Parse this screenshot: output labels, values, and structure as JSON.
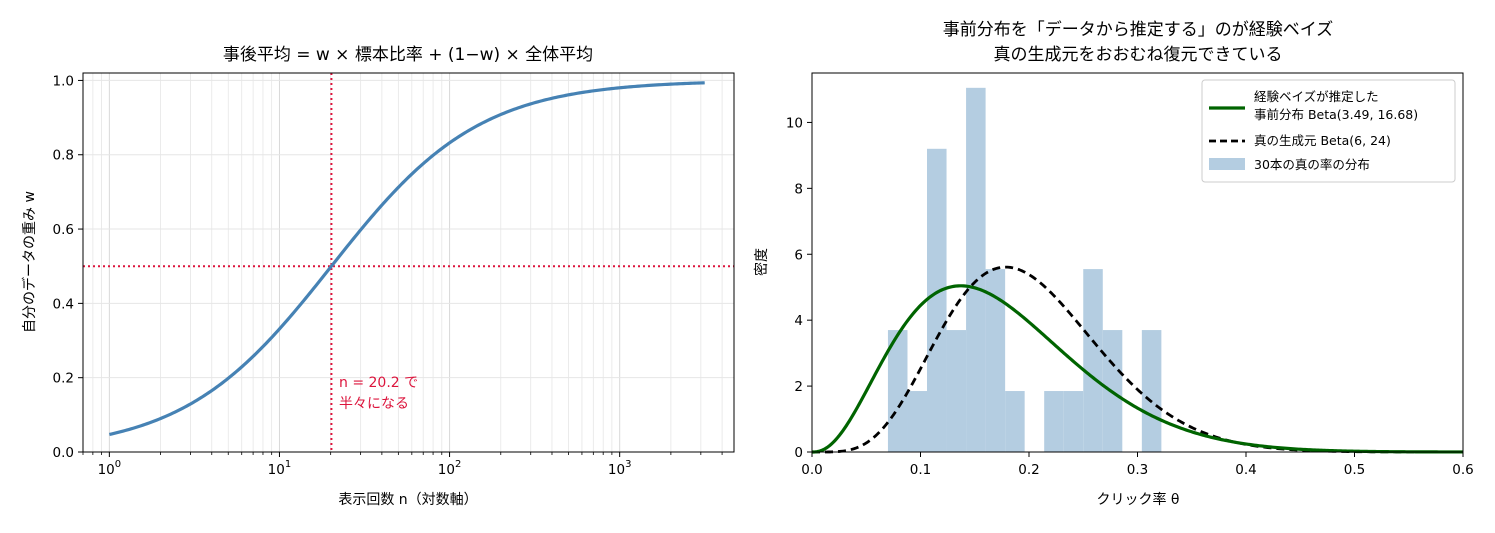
{
  "chart_data": [
    {
      "type": "line",
      "title": "事後平均 = w × 標本比率 + (1−w) × 全体平均",
      "xlabel": "表示回数 n（対数軸）",
      "ylabel": "自分のデータの重み w",
      "xscale": "log",
      "xlim": [
        0.7,
        4700
      ],
      "ylim": [
        0.0,
        1.02
      ],
      "grid": true,
      "xticks": [
        {
          "value": 1,
          "base": "10",
          "exp": "0"
        },
        {
          "value": 10,
          "base": "10",
          "exp": "1"
        },
        {
          "value": 100,
          "base": "10",
          "exp": "2"
        },
        {
          "value": 1000,
          "base": "10",
          "exp": "3"
        }
      ],
      "yticks": [
        {
          "value": 0.0,
          "label": "0.0"
        },
        {
          "value": 0.2,
          "label": "0.2"
        },
        {
          "value": 0.4,
          "label": "0.4"
        },
        {
          "value": 0.6,
          "label": "0.6"
        },
        {
          "value": 0.8,
          "label": "0.8"
        },
        {
          "value": 1.0,
          "label": "1.0"
        }
      ],
      "series": [
        {
          "color": "#4682b4",
          "half_point_n": 20.2,
          "x_range": [
            1,
            3162
          ],
          "formula_note": "w = n / (n + 20.2)"
        }
      ],
      "reference_lines": {
        "vertical_x": 20.2,
        "horizontal_y": 0.5,
        "color": "#dc143c"
      },
      "annotation": {
        "lines": [
          "n = 20.2 で",
          "半々になる"
        ],
        "color": "#dc143c"
      }
    },
    {
      "type": "line",
      "title_lines": [
        "事前分布を「データから推定する」のが経験ベイズ",
        "真の生成元をおおむね復元できている"
      ],
      "xlabel": "クリック率 θ",
      "ylabel": "密度",
      "xlim": [
        0.0,
        0.6
      ],
      "ylim": [
        0.0,
        11.5
      ],
      "grid": false,
      "xticks": [
        {
          "value": 0.0,
          "label": "0.0"
        },
        {
          "value": 0.1,
          "label": "0.1"
        },
        {
          "value": 0.2,
          "label": "0.2"
        },
        {
          "value": 0.3,
          "label": "0.3"
        },
        {
          "value": 0.4,
          "label": "0.4"
        },
        {
          "value": 0.5,
          "label": "0.5"
        },
        {
          "value": 0.6,
          "label": "0.6"
        }
      ],
      "yticks": [
        {
          "value": 0,
          "label": "0"
        },
        {
          "value": 2,
          "label": "2"
        },
        {
          "value": 4,
          "label": "4"
        },
        {
          "value": 6,
          "label": "6"
        },
        {
          "value": 8,
          "label": "8"
        },
        {
          "value": 10,
          "label": "10"
        }
      ],
      "histogram": {
        "name": "30本の真の率の分布",
        "color": "#b4cde1",
        "bin_edges": [
          0.07,
          0.088,
          0.106,
          0.124,
          0.142,
          0.16,
          0.178,
          0.196,
          0.214,
          0.232,
          0.25,
          0.268,
          0.286,
          0.304,
          0.322
        ],
        "densities": [
          3.7,
          1.85,
          9.2,
          3.7,
          11.05,
          5.55,
          1.85,
          0,
          1.85,
          1.85,
          5.55,
          3.7,
          0,
          3.7
        ]
      },
      "series": [
        {
          "name_lines": [
            "経験ベイズが推定した",
            "事前分布 Beta(3.49, 16.68)"
          ],
          "color": "#006400",
          "dash": "solid",
          "alpha": 3.49,
          "beta": 16.68
        },
        {
          "name_lines": [
            "真の生成元 Beta(6, 24)"
          ],
          "color": "#000000",
          "dash": "dashed",
          "alpha": 6,
          "beta": 24
        }
      ],
      "legend": {
        "position": "top-right"
      }
    }
  ]
}
